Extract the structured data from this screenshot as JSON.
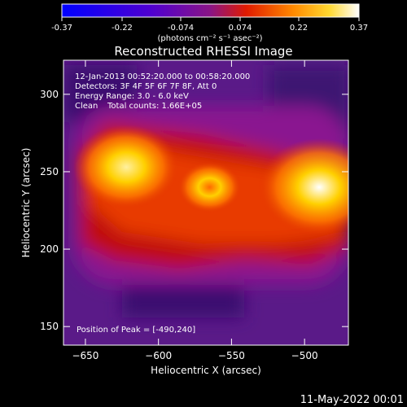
{
  "colorbar": {
    "tick_labels": [
      "-0.37",
      "-0.22",
      "-0.074",
      "0.074",
      "0.22",
      "0.37"
    ],
    "ticks": [
      -0.37,
      -0.22,
      -0.074,
      0.074,
      0.22,
      0.37
    ],
    "units": "(photons cm⁻² s⁻¹ asec⁻²)"
  },
  "chart_data": {
    "type": "heatmap",
    "title": "Reconstructed RHESSI Image",
    "xlabel": "Heliocentric X (arcsec)",
    "ylabel": "Heliocentric Y (arcsec)",
    "xlim": [
      -665,
      -470
    ],
    "ylim": [
      138,
      322
    ],
    "xticks": [
      -650,
      -600,
      -550,
      -500
    ],
    "yticks": [
      150,
      200,
      250,
      300
    ],
    "value_range": [
      -0.37,
      0.37
    ],
    "sources": [
      {
        "x": -622,
        "y": 253,
        "peak": 0.3
      },
      {
        "x": -490,
        "y": 240,
        "peak": 0.37
      },
      {
        "x": -565,
        "y": 240,
        "peak": 0.12
      }
    ],
    "annotations": [
      "12-Jan-2013 00:52:20.000 to 00:58:20.000",
      "Detectors: 3F 4F 5F 6F 7F 8F, Att 0",
      "Energy Range: 3.0 - 6.0 keV",
      "Clean",
      "Total counts: 1.66E+05",
      "Position of Peak = [-490,240]"
    ],
    "footer_date": "11-May-2022 00:01"
  }
}
